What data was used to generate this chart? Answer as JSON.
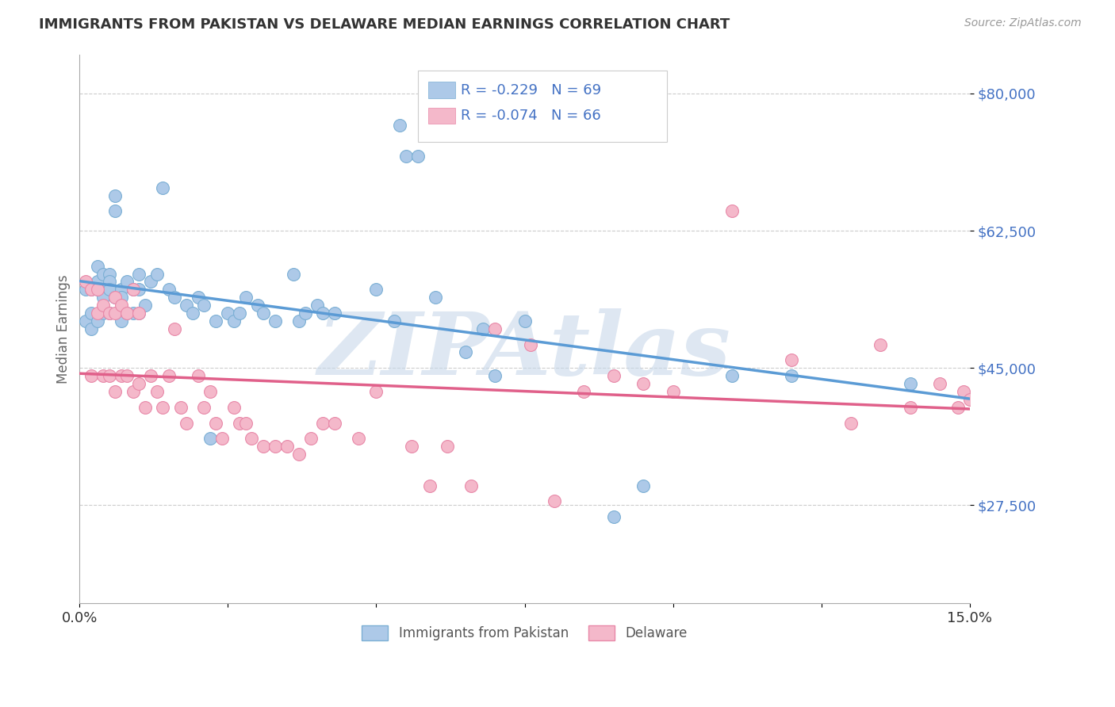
{
  "title": "IMMIGRANTS FROM PAKISTAN VS DELAWARE MEDIAN EARNINGS CORRELATION CHART",
  "source": "Source: ZipAtlas.com",
  "ylabel": "Median Earnings",
  "xmin": 0.0,
  "xmax": 0.15,
  "ymin": 15000,
  "ymax": 85000,
  "yticks": [
    27500,
    45000,
    62500,
    80000
  ],
  "ytick_labels": [
    "$27,500",
    "$45,000",
    "$62,500",
    "$80,000"
  ],
  "xtick_positions": [
    0.0,
    0.025,
    0.05,
    0.075,
    0.1,
    0.125,
    0.15
  ],
  "xtick_labels": [
    "0.0%",
    "",
    "",
    "",
    "",
    "",
    "15.0%"
  ],
  "series1_name": "Immigrants from Pakistan",
  "series1_R": -0.229,
  "series1_N": 69,
  "series1_color": "#adc9e8",
  "series1_edge_color": "#7bafd4",
  "series1_line_color": "#5b9bd5",
  "series2_name": "Delaware",
  "series2_R": -0.074,
  "series2_N": 66,
  "series2_color": "#f4b8ca",
  "series2_edge_color": "#e888a8",
  "series2_line_color": "#e0608a",
  "bg_color": "#ffffff",
  "title_color": "#333333",
  "axis_tick_color": "#4472c4",
  "ylabel_color": "#666666",
  "grid_color": "#cccccc",
  "watermark_text": "ZIPAtlas",
  "watermark_color": "#c8d8ea",
  "series1_x": [
    0.001,
    0.001,
    0.002,
    0.002,
    0.002,
    0.003,
    0.003,
    0.003,
    0.003,
    0.004,
    0.004,
    0.004,
    0.005,
    0.005,
    0.005,
    0.005,
    0.006,
    0.006,
    0.006,
    0.007,
    0.007,
    0.007,
    0.008,
    0.008,
    0.009,
    0.009,
    0.01,
    0.01,
    0.01,
    0.011,
    0.012,
    0.013,
    0.014,
    0.015,
    0.016,
    0.018,
    0.019,
    0.02,
    0.021,
    0.022,
    0.023,
    0.025,
    0.026,
    0.027,
    0.028,
    0.03,
    0.031,
    0.033,
    0.036,
    0.037,
    0.038,
    0.04,
    0.041,
    0.043,
    0.05,
    0.053,
    0.054,
    0.055,
    0.057,
    0.06,
    0.065,
    0.068,
    0.07,
    0.075,
    0.09,
    0.095,
    0.11,
    0.12,
    0.14
  ],
  "series1_y": [
    55000,
    51000,
    55000,
    52000,
    50000,
    58000,
    56000,
    55000,
    51000,
    57000,
    54000,
    52000,
    57000,
    56000,
    55000,
    52000,
    67000,
    65000,
    54000,
    55000,
    54000,
    51000,
    56000,
    52000,
    55000,
    52000,
    57000,
    55000,
    52000,
    53000,
    56000,
    57000,
    68000,
    55000,
    54000,
    53000,
    52000,
    54000,
    53000,
    36000,
    51000,
    52000,
    51000,
    52000,
    54000,
    53000,
    52000,
    51000,
    57000,
    51000,
    52000,
    53000,
    52000,
    52000,
    55000,
    51000,
    76000,
    72000,
    72000,
    54000,
    47000,
    50000,
    44000,
    51000,
    26000,
    30000,
    44000,
    44000,
    43000
  ],
  "series2_x": [
    0.001,
    0.002,
    0.002,
    0.003,
    0.003,
    0.004,
    0.004,
    0.005,
    0.005,
    0.006,
    0.006,
    0.006,
    0.007,
    0.007,
    0.008,
    0.008,
    0.009,
    0.009,
    0.01,
    0.01,
    0.011,
    0.012,
    0.013,
    0.014,
    0.015,
    0.016,
    0.017,
    0.018,
    0.02,
    0.021,
    0.022,
    0.023,
    0.024,
    0.026,
    0.027,
    0.028,
    0.029,
    0.031,
    0.033,
    0.035,
    0.037,
    0.039,
    0.041,
    0.043,
    0.047,
    0.05,
    0.056,
    0.059,
    0.062,
    0.066,
    0.07,
    0.076,
    0.08,
    0.085,
    0.09,
    0.095,
    0.1,
    0.11,
    0.12,
    0.13,
    0.135,
    0.14,
    0.145,
    0.148,
    0.149,
    0.15
  ],
  "series2_y": [
    56000,
    55000,
    44000,
    55000,
    52000,
    53000,
    44000,
    52000,
    44000,
    54000,
    52000,
    42000,
    53000,
    44000,
    52000,
    44000,
    55000,
    42000,
    52000,
    43000,
    40000,
    44000,
    42000,
    40000,
    44000,
    50000,
    40000,
    38000,
    44000,
    40000,
    42000,
    38000,
    36000,
    40000,
    38000,
    38000,
    36000,
    35000,
    35000,
    35000,
    34000,
    36000,
    38000,
    38000,
    36000,
    42000,
    35000,
    30000,
    35000,
    30000,
    50000,
    48000,
    28000,
    42000,
    44000,
    43000,
    42000,
    65000,
    46000,
    38000,
    48000,
    40000,
    43000,
    40000,
    42000,
    41000
  ]
}
